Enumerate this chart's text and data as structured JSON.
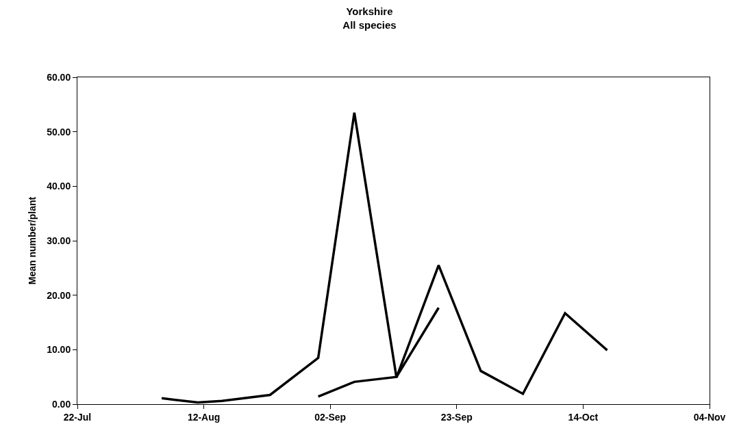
{
  "chart_data": {
    "type": "line",
    "title": "Yorkshire\nAll species",
    "ylabel": "Mean number/plant",
    "xlim": [
      "--07-22",
      "--11-04"
    ],
    "xticks": [
      {
        "value": "--07-22",
        "label": "22-Jul"
      },
      {
        "value": "--08-12",
        "label": "12-Aug"
      },
      {
        "value": "--09-02",
        "label": "02-Sep"
      },
      {
        "value": "--09-23",
        "label": "23-Sep"
      },
      {
        "value": "--10-14",
        "label": "14-Oct"
      },
      {
        "value": "--11-04",
        "label": "04-Nov"
      }
    ],
    "ylim": [
      0,
      60
    ],
    "yticks": [
      {
        "value": 0,
        "label": "0.00"
      },
      {
        "value": 10,
        "label": "10.00"
      },
      {
        "value": 20,
        "label": "20.00"
      },
      {
        "value": 30,
        "label": "30.00"
      },
      {
        "value": 40,
        "label": "40.00"
      },
      {
        "value": 50,
        "label": "50.00"
      },
      {
        "value": 60,
        "label": "60.00"
      }
    ],
    "series": [
      {
        "color": "#000000",
        "x": [
          "--08-05",
          "--08-11",
          "--08-15",
          "--08-23",
          "--08-31",
          "--09-06",
          "--09-13",
          "--09-20",
          "--09-27",
          "--10-04",
          "--10-11",
          "--10-18"
        ],
        "values": [
          1.1,
          0.3,
          0.6,
          1.7,
          8.5,
          53.5,
          4.9,
          25.5,
          6.1,
          1.9,
          16.7,
          9.9
        ]
      },
      {
        "color": "#000000",
        "x": [
          "--08-31",
          "--09-06",
          "--09-13",
          "--09-20"
        ],
        "values": [
          1.4,
          4.1,
          5.0,
          17.7
        ]
      }
    ],
    "marker": "none",
    "line_style": "solid"
  }
}
